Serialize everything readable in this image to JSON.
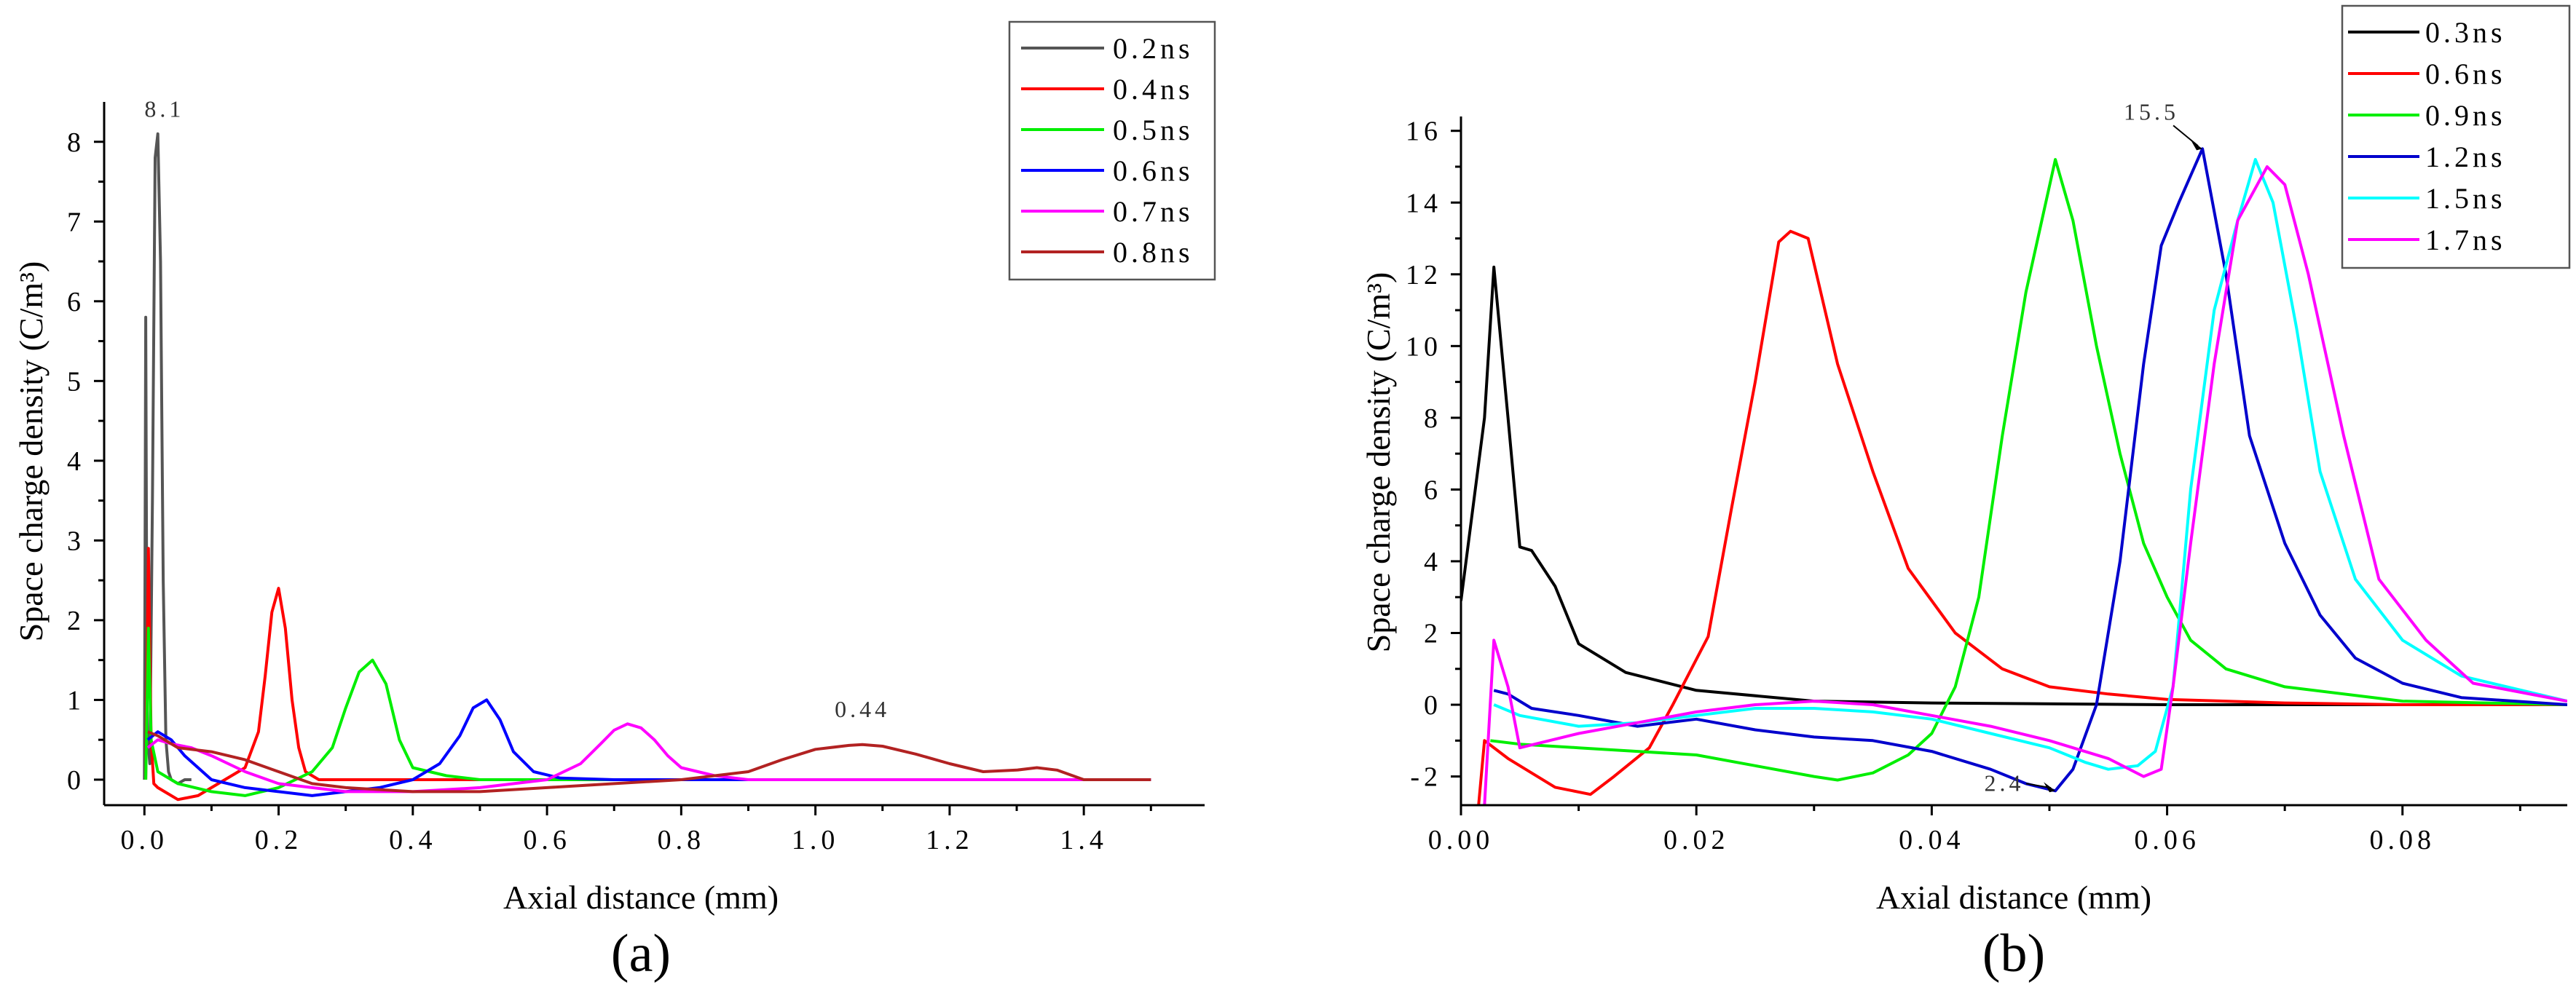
{
  "chart_data": [
    {
      "type": "line",
      "panel": "(a)",
      "xlabel": "Axial distance (mm)",
      "ylabel": "Space charge density (C/m³)",
      "xlim": [
        -0.06,
        1.58
      ],
      "ylim": [
        -0.32,
        8.5
      ],
      "xticks": [
        0.0,
        0.2,
        0.4,
        0.6,
        0.8,
        1.0,
        1.2,
        1.4
      ],
      "xtick_labels": [
        "0.0",
        "0.2",
        "0.4",
        "0.6",
        "0.8",
        "1.0",
        "1.2",
        "1.4"
      ],
      "yticks": [
        0,
        1,
        2,
        3,
        4,
        5,
        6,
        7,
        8
      ],
      "ytick_labels": [
        "0",
        "1",
        "2",
        "3",
        "4",
        "5",
        "6",
        "7",
        "8"
      ],
      "legend_position": "top-right",
      "annotations": [
        {
          "text": "8.1",
          "x": 0.03,
          "y": 8.15
        },
        {
          "text": "0.44",
          "x": 1.07,
          "y": 0.6
        }
      ],
      "series": [
        {
          "name": "0.2ns",
          "color": "#555555",
          "x": [
            0.0,
            0.002,
            0.004,
            0.008,
            0.012,
            0.016,
            0.02,
            0.024,
            0.028,
            0.032,
            0.036,
            0.04,
            0.05,
            0.06,
            0.07
          ],
          "y": [
            0.0,
            5.8,
            0.6,
            0.2,
            3.5,
            7.8,
            8.1,
            6.5,
            2.5,
            0.5,
            0.1,
            0.0,
            -0.05,
            0.0,
            0.0
          ]
        },
        {
          "name": "0.4ns",
          "color": "#ff0000",
          "x": [
            0.002,
            0.006,
            0.01,
            0.014,
            0.02,
            0.03,
            0.05,
            0.08,
            0.1,
            0.12,
            0.15,
            0.17,
            0.18,
            0.19,
            0.2,
            0.21,
            0.22,
            0.23,
            0.24,
            0.26,
            0.3,
            0.4,
            0.6,
            0.8,
            1.0,
            1.2,
            1.4,
            1.5
          ],
          "y": [
            0.0,
            2.9,
            0.5,
            -0.05,
            -0.1,
            -0.15,
            -0.25,
            -0.2,
            -0.1,
            0.0,
            0.15,
            0.6,
            1.3,
            2.1,
            2.4,
            1.9,
            1.0,
            0.4,
            0.1,
            0.0,
            0.0,
            0.0,
            0.0,
            0.0,
            0.0,
            0.0,
            0.0,
            0.0
          ]
        },
        {
          "name": "0.5ns",
          "color": "#00ee00",
          "x": [
            0.002,
            0.006,
            0.01,
            0.02,
            0.05,
            0.1,
            0.15,
            0.2,
            0.25,
            0.28,
            0.3,
            0.32,
            0.34,
            0.36,
            0.38,
            0.4,
            0.45,
            0.5,
            0.6,
            0.8,
            1.0,
            1.2,
            1.4,
            1.5
          ],
          "y": [
            0.0,
            1.9,
            0.5,
            0.1,
            -0.05,
            -0.15,
            -0.2,
            -0.1,
            0.1,
            0.4,
            0.9,
            1.35,
            1.5,
            1.2,
            0.5,
            0.15,
            0.05,
            0.0,
            0.0,
            0.0,
            0.0,
            0.0,
            0.0,
            0.0
          ]
        },
        {
          "name": "0.6ns",
          "color": "#0000ff",
          "x": [
            0.005,
            0.02,
            0.04,
            0.06,
            0.1,
            0.15,
            0.2,
            0.25,
            0.3,
            0.35,
            0.4,
            0.44,
            0.47,
            0.49,
            0.51,
            0.53,
            0.55,
            0.58,
            0.62,
            0.7,
            0.8,
            1.0,
            1.2,
            1.4,
            1.5
          ],
          "y": [
            0.5,
            0.6,
            0.5,
            0.3,
            0.0,
            -0.1,
            -0.15,
            -0.2,
            -0.15,
            -0.1,
            0.0,
            0.2,
            0.55,
            0.9,
            1.0,
            0.75,
            0.35,
            0.1,
            0.02,
            0.0,
            0.0,
            0.0,
            0.0,
            0.0,
            0.0
          ]
        },
        {
          "name": "0.7ns",
          "color": "#ff00ff",
          "x": [
            0.005,
            0.02,
            0.04,
            0.07,
            0.1,
            0.15,
            0.2,
            0.25,
            0.3,
            0.4,
            0.5,
            0.6,
            0.65,
            0.68,
            0.7,
            0.72,
            0.74,
            0.76,
            0.78,
            0.8,
            0.85,
            0.9,
            1.0,
            1.2,
            1.4,
            1.5
          ],
          "y": [
            0.4,
            0.5,
            0.45,
            0.4,
            0.3,
            0.1,
            -0.05,
            -0.1,
            -0.15,
            -0.15,
            -0.1,
            0.0,
            0.2,
            0.45,
            0.62,
            0.7,
            0.65,
            0.5,
            0.3,
            0.15,
            0.05,
            0.0,
            0.0,
            0.0,
            0.0,
            0.0
          ]
        },
        {
          "name": "0.8ns",
          "color": "#b22222",
          "x": [
            0.005,
            0.02,
            0.05,
            0.1,
            0.15,
            0.2,
            0.25,
            0.3,
            0.4,
            0.5,
            0.6,
            0.7,
            0.8,
            0.9,
            0.95,
            1.0,
            1.05,
            1.07,
            1.1,
            1.15,
            1.2,
            1.25,
            1.3,
            1.33,
            1.36,
            1.4,
            1.45,
            1.5
          ],
          "y": [
            0.6,
            0.55,
            0.4,
            0.35,
            0.25,
            0.1,
            -0.05,
            -0.1,
            -0.15,
            -0.15,
            -0.1,
            -0.05,
            0.0,
            0.1,
            0.25,
            0.38,
            0.43,
            0.44,
            0.42,
            0.32,
            0.2,
            0.1,
            0.12,
            0.15,
            0.12,
            0.0,
            0.0,
            0.0
          ]
        }
      ]
    },
    {
      "type": "line",
      "panel": "(b)",
      "xlabel": "Axial distance (mm)",
      "ylabel": "Space charge density (C/m³)",
      "xlim": [
        0.0,
        0.094
      ],
      "ylim": [
        -2.8,
        16.4
      ],
      "xticks": [
        0.0,
        0.02,
        0.04,
        0.06,
        0.08
      ],
      "xtick_labels": [
        "0.00",
        "0.02",
        "0.04",
        "0.06",
        "0.08"
      ],
      "yticks": [
        -2,
        0,
        2,
        4,
        6,
        8,
        10,
        12,
        14,
        16
      ],
      "ytick_labels": [
        "-2",
        "0",
        "2",
        "4",
        "6",
        "8",
        "10",
        "12",
        "14",
        "16"
      ],
      "legend_position": "top-right",
      "annotations": [
        {
          "text": "15.5",
          "x": 0.063,
          "y": 15.5
        },
        {
          "text": "2.4",
          "x": 0.0505,
          "y": -2.4
        }
      ],
      "series": [
        {
          "name": "0.3ns",
          "color": "#000000",
          "x": [
            0.0,
            0.002,
            0.0028,
            0.004,
            0.005,
            0.006,
            0.008,
            0.01,
            0.014,
            0.02,
            0.03,
            0.04,
            0.06,
            0.08,
            0.094
          ],
          "y": [
            2.9,
            8.0,
            12.2,
            8.0,
            4.4,
            4.3,
            3.3,
            1.7,
            0.9,
            0.4,
            0.1,
            0.05,
            0.0,
            0.0,
            0.0
          ]
        },
        {
          "name": "0.6ns",
          "color": "#ff0000",
          "x": [
            0.0015,
            0.002,
            0.004,
            0.008,
            0.011,
            0.013,
            0.016,
            0.018,
            0.021,
            0.023,
            0.025,
            0.027,
            0.028,
            0.0295,
            0.032,
            0.035,
            0.038,
            0.042,
            0.046,
            0.05,
            0.055,
            0.06,
            0.07,
            0.08,
            0.094
          ],
          "y": [
            -2.8,
            -1.0,
            -1.5,
            -2.3,
            -2.5,
            -2.0,
            -1.2,
            0.0,
            1.9,
            5.5,
            9.0,
            12.9,
            13.2,
            13.0,
            9.5,
            6.5,
            3.8,
            2.0,
            1.0,
            0.5,
            0.3,
            0.15,
            0.05,
            0.0,
            0.0
          ]
        },
        {
          "name": "0.9ns",
          "color": "#00ee00",
          "x": [
            0.0025,
            0.005,
            0.01,
            0.015,
            0.02,
            0.025,
            0.03,
            0.032,
            0.035,
            0.038,
            0.04,
            0.042,
            0.044,
            0.046,
            0.048,
            0.0505,
            0.052,
            0.054,
            0.056,
            0.058,
            0.06,
            0.062,
            0.065,
            0.07,
            0.08,
            0.094
          ],
          "y": [
            -1.0,
            -1.1,
            -1.2,
            -1.3,
            -1.4,
            -1.7,
            -2.0,
            -2.1,
            -1.9,
            -1.4,
            -0.8,
            0.5,
            3.0,
            7.5,
            11.5,
            15.2,
            13.5,
            10.0,
            7.0,
            4.5,
            3.0,
            1.8,
            1.0,
            0.5,
            0.1,
            0.0
          ]
        },
        {
          "name": "1.2ns",
          "color": "#0000cc",
          "x": [
            0.0028,
            0.004,
            0.006,
            0.01,
            0.015,
            0.02,
            0.025,
            0.03,
            0.035,
            0.04,
            0.045,
            0.048,
            0.0505,
            0.052,
            0.054,
            0.056,
            0.058,
            0.0595,
            0.061,
            0.063,
            0.065,
            0.067,
            0.07,
            0.073,
            0.076,
            0.08,
            0.085,
            0.094
          ],
          "y": [
            0.4,
            0.3,
            -0.1,
            -0.3,
            -0.6,
            -0.4,
            -0.7,
            -0.9,
            -1.0,
            -1.3,
            -1.8,
            -2.2,
            -2.4,
            -1.8,
            0.0,
            4.0,
            9.5,
            12.8,
            14.0,
            15.5,
            12.0,
            7.5,
            4.5,
            2.5,
            1.3,
            0.6,
            0.2,
            0.0
          ]
        },
        {
          "name": "1.5ns",
          "color": "#00ffff",
          "x": [
            0.0028,
            0.005,
            0.01,
            0.015,
            0.02,
            0.025,
            0.03,
            0.035,
            0.04,
            0.045,
            0.05,
            0.053,
            0.055,
            0.0575,
            0.059,
            0.0605,
            0.062,
            0.064,
            0.066,
            0.0675,
            0.069,
            0.071,
            0.073,
            0.076,
            0.08,
            0.085,
            0.094
          ],
          "y": [
            0.0,
            -0.3,
            -0.6,
            -0.5,
            -0.3,
            -0.1,
            -0.1,
            -0.2,
            -0.4,
            -0.8,
            -1.2,
            -1.6,
            -1.8,
            -1.7,
            -1.3,
            0.5,
            6.0,
            11.0,
            13.5,
            15.2,
            14.0,
            10.5,
            6.5,
            3.5,
            1.8,
            0.8,
            0.1
          ]
        },
        {
          "name": "1.7ns",
          "color": "#ff00ff",
          "x": [
            0.002,
            0.0028,
            0.004,
            0.005,
            0.01,
            0.015,
            0.02,
            0.025,
            0.03,
            0.035,
            0.04,
            0.045,
            0.05,
            0.055,
            0.058,
            0.0595,
            0.0605,
            0.062,
            0.064,
            0.066,
            0.0685,
            0.07,
            0.072,
            0.075,
            0.078,
            0.082,
            0.086,
            0.094
          ],
          "y": [
            -2.8,
            1.8,
            0.5,
            -1.2,
            -0.8,
            -0.5,
            -0.2,
            0.0,
            0.1,
            0.0,
            -0.3,
            -0.6,
            -1.0,
            -1.5,
            -2.0,
            -1.8,
            0.5,
            4.5,
            9.5,
            13.5,
            15.0,
            14.5,
            12.0,
            7.5,
            3.5,
            1.8,
            0.6,
            0.1
          ]
        }
      ]
    }
  ]
}
